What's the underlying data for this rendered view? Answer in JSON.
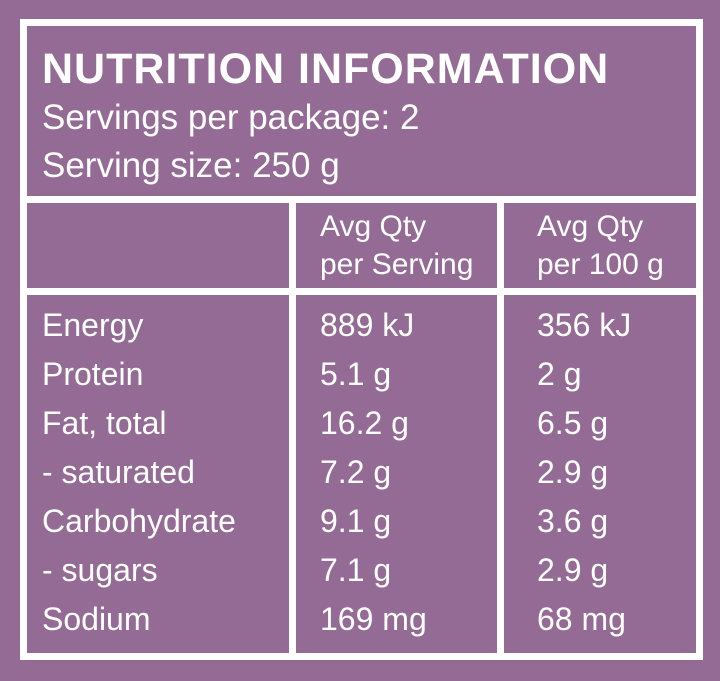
{
  "colors": {
    "background": "#946B94",
    "line": "#FFFFFF",
    "text": "#FFFFFF"
  },
  "panel": {
    "title": "NUTRITION INFORMATION",
    "servings_per_package": "Servings per package: 2",
    "serving_size": "Serving size: 250 g"
  },
  "table": {
    "columns": {
      "nutrient": "",
      "per_serving": "Avg Qty\nper Serving",
      "per_100g": "Avg Qty\nper 100 g"
    },
    "rows": [
      {
        "nutrient": "Energy",
        "per_serving": "889 kJ",
        "per_100g": "356 kJ"
      },
      {
        "nutrient": "Protein",
        "per_serving": "5.1 g",
        "per_100g": "2 g"
      },
      {
        "nutrient": "Fat, total",
        "per_serving": "16.2 g",
        "per_100g": "6.5 g"
      },
      {
        "nutrient": "- saturated",
        "per_serving": "7.2 g",
        "per_100g": "2.9 g"
      },
      {
        "nutrient": "Carbohydrate",
        "per_serving": "9.1 g",
        "per_100g": "3.6 g"
      },
      {
        "nutrient": "- sugars",
        "per_serving": "7.1 g",
        "per_100g": "2.9 g"
      },
      {
        "nutrient": "Sodium",
        "per_serving": "169 mg",
        "per_100g": "68 mg"
      }
    ]
  }
}
